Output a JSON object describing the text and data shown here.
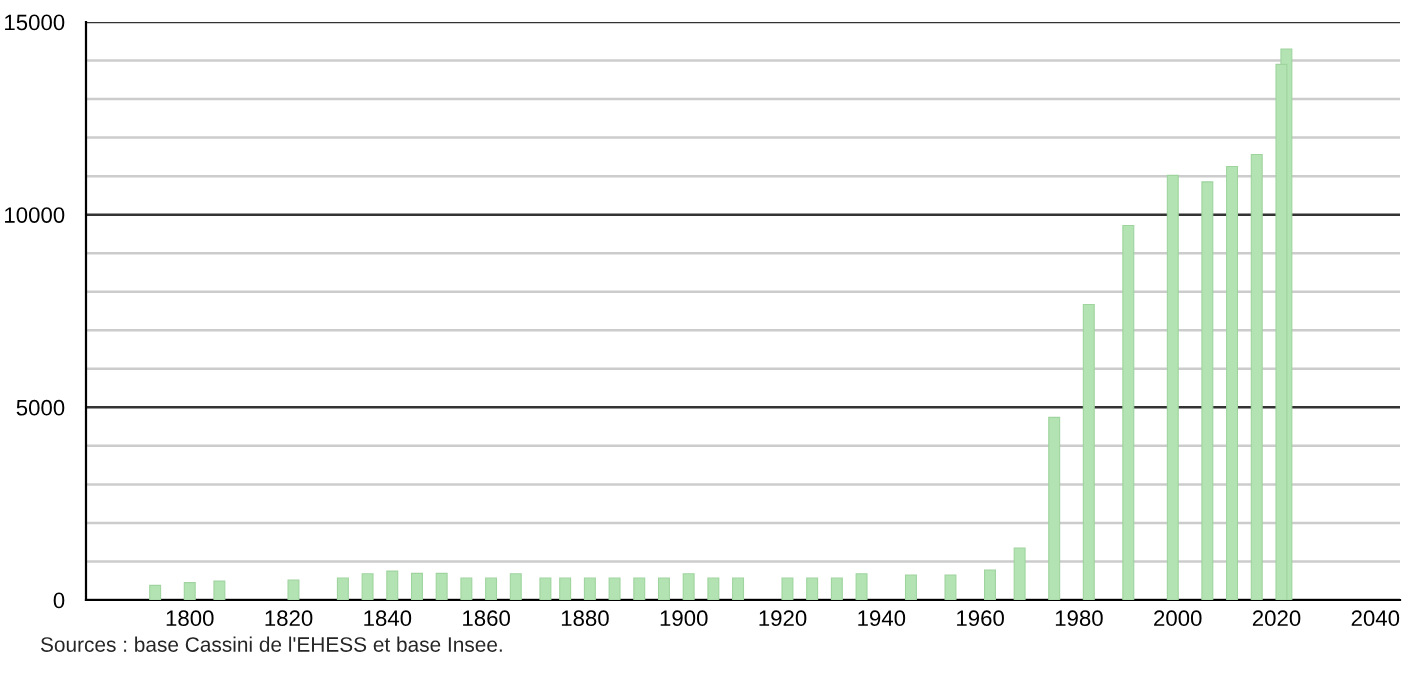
{
  "chart_data": {
    "type": "bar",
    "color": "#b3e3b3",
    "x": [
      1793,
      1800,
      1806,
      1821,
      1831,
      1836,
      1841,
      1846,
      1851,
      1856,
      1861,
      1866,
      1872,
      1876,
      1881,
      1886,
      1891,
      1896,
      1901,
      1906,
      1911,
      1921,
      1926,
      1931,
      1936,
      1946,
      1954,
      1962,
      1968,
      1975,
      1982,
      1990,
      1999,
      2006,
      2011,
      2016,
      2021,
      2022
    ],
    "values": [
      380,
      450,
      490,
      520,
      570,
      680,
      750,
      690,
      690,
      570,
      570,
      680,
      570,
      570,
      570,
      570,
      570,
      570,
      680,
      570,
      570,
      570,
      570,
      570,
      680,
      650,
      650,
      780,
      1350,
      4740,
      7670,
      9720,
      11020,
      10850,
      11250,
      11560,
      13900,
      14300
    ],
    "xlim": [
      1779,
      2045
    ],
    "ylim": [
      0,
      15000
    ],
    "xticks": [
      1800,
      1820,
      1840,
      1860,
      1880,
      1900,
      1920,
      1940,
      1960,
      1980,
      2000,
      2020,
      2040
    ],
    "yticks": [
      0,
      {
        "value": 1000,
        "label": null
      },
      {
        "value": 2000,
        "label": null
      },
      {
        "value": 3000,
        "label": null
      },
      {
        "value": 4000,
        "label": null
      },
      5000,
      {
        "value": 6000,
        "label": null
      },
      {
        "value": 7000,
        "label": null
      },
      {
        "value": 8000,
        "label": null
      },
      {
        "value": 9000,
        "label": null
      },
      10000,
      {
        "value": 11000,
        "label": null
      },
      {
        "value": 12000,
        "label": null
      },
      {
        "value": 13000,
        "label": null
      },
      {
        "value": 14000,
        "label": null
      },
      15000
    ],
    "grid": "y",
    "annotations": [
      "Sources : base Cassini de l'EHESS et base Insee."
    ]
  }
}
